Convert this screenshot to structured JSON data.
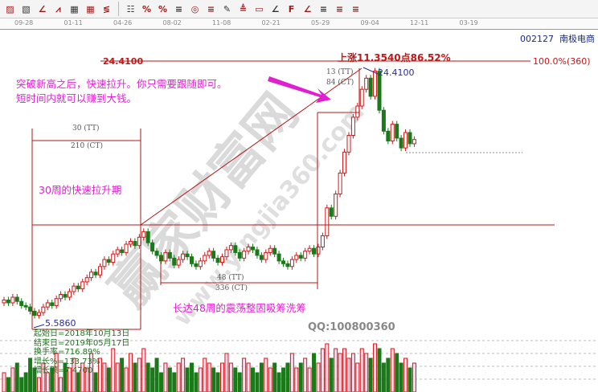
{
  "toolbar": {
    "icons": [
      "draw-icon",
      "fill-icon",
      "angle-icon",
      "zigzag-icon",
      "grid-icon",
      "grid-arrow-icon",
      "fan-icon",
      "bars-icon",
      "percent-range-icon",
      "percent-icon",
      "percent-lines-icon",
      "gold-circle-icon",
      "gold-lines-icon",
      "pen-icon",
      "measure-icon",
      "gold-box-icon",
      "angle-lines-icon",
      "fib-icon",
      "gold-angle-icon",
      "ratio-icon",
      "fan-lines-icon",
      "speed-lines-icon"
    ],
    "percent_label": "%"
  },
  "date_axis": [
    "09-28",
    "01-11",
    "04-26",
    "08-02",
    "11-08",
    "02-21",
    "05-29",
    "09-04",
    "12-11",
    "03-19"
  ],
  "stock": {
    "code": "002127",
    "name": "南极电商"
  },
  "annotations": {
    "high_price_left": "24.4100",
    "rise_label": "上涨11.3540点86.52%",
    "peak_price": "24.4100",
    "percent_level": "100.0%(360)",
    "headline_line1": "突破新高之后，快速拉升。你只需要跟随即可。",
    "headline_line2": "短时间内就可以赚到大钱。",
    "box1_tt": "30 (TT)",
    "box1_ct": "210 (CT)",
    "box1_label": "30周的快速拉升期",
    "box2_tt": "48 (TT)",
    "box2_ct": "336 (CT)",
    "box2_label": "长达48周的震荡整固吸筹洗筹",
    "box3_tt": "13 (TT)",
    "box3_ct": "84 (CT)",
    "low_price": "5.5860",
    "qq": "QQ:100800360"
  },
  "stats": {
    "start": "起始日=2018年10月13日",
    "end": "结束日=2019年05月17日",
    "turnover": "换手率=716.89%",
    "growth_pct": "增长%=133.73%",
    "growth_amt": "增长额=7.4700"
  },
  "watermark": {
    "main": "赢家财富网",
    "url": "www.yingjia360.com"
  },
  "colors": {
    "up": "#d01818",
    "down": "#1a7a1a",
    "annotation": "#e020d0",
    "line": "#b01818"
  },
  "chart_data": {
    "type": "candlestick",
    "title": "",
    "x_ticks": [
      "09-28",
      "01-11",
      "04-26",
      "08-02",
      "11-08",
      "02-21",
      "05-29",
      "09-04",
      "12-11",
      "03-19"
    ],
    "ylim": [
      5.586,
      24.41
    ],
    "closes": [
      7.4,
      7.2,
      7.6,
      7.3,
      7.0,
      6.9,
      6.6,
      6.3,
      6.5,
      6.9,
      7.2,
      7.0,
      7.5,
      7.8,
      7.6,
      8.0,
      8.4,
      8.2,
      8.7,
      9.0,
      9.4,
      9.2,
      9.8,
      10.3,
      10.1,
      10.7,
      11.0,
      10.8,
      11.4,
      11.6,
      11.3,
      11.9,
      12.3,
      11.5,
      10.9,
      10.6,
      10.2,
      10.8,
      10.4,
      9.9,
      10.3,
      10.7,
      10.5,
      10.0,
      9.8,
      10.2,
      10.6,
      10.9,
      10.4,
      10.1,
      10.5,
      11.0,
      11.3,
      10.8,
      10.4,
      10.9,
      11.2,
      11.0,
      10.6,
      10.3,
      10.8,
      11.1,
      10.7,
      10.2,
      10.0,
      9.8,
      10.3,
      10.6,
      10.4,
      10.9,
      11.1,
      10.7,
      11.2,
      12.0,
      14.0,
      13.4,
      15.0,
      16.5,
      18.0,
      19.2,
      20.5,
      21.3,
      22.5,
      23.3,
      22.0,
      23.8,
      21.0,
      19.5,
      18.8,
      20.0,
      19.0,
      18.3,
      19.4,
      18.6,
      18.9
    ],
    "volume_relative": [
      0.4,
      0.3,
      0.5,
      0.6,
      0.3,
      0.4,
      0.7,
      0.5,
      0.3,
      0.6,
      0.4,
      0.5,
      0.8,
      0.3,
      0.6,
      0.5,
      0.7,
      0.4,
      0.6,
      0.5,
      0.8,
      0.4,
      0.7,
      0.6,
      0.5,
      0.9,
      0.6,
      0.7,
      0.5,
      0.8,
      0.6,
      0.7,
      0.9,
      0.6,
      0.5,
      0.7,
      0.4,
      0.6,
      0.5,
      0.4,
      0.6,
      0.7,
      0.5,
      0.6,
      0.4,
      0.5,
      0.7,
      0.6,
      0.5,
      0.4,
      0.6,
      0.8,
      0.6,
      0.5,
      0.4,
      0.7,
      0.6,
      0.5,
      0.4,
      0.6,
      0.7,
      0.5,
      0.6,
      0.4,
      0.5,
      0.6,
      0.8,
      0.5,
      0.6,
      0.7,
      0.5,
      0.8,
      0.6,
      0.9,
      1.0,
      0.7,
      0.9,
      0.8,
      0.9,
      0.7,
      0.8,
      0.6,
      0.9,
      0.8,
      0.7,
      1.0,
      0.9,
      0.6,
      0.7,
      0.9,
      0.8,
      0.6,
      0.7,
      0.5,
      0.6
    ]
  }
}
